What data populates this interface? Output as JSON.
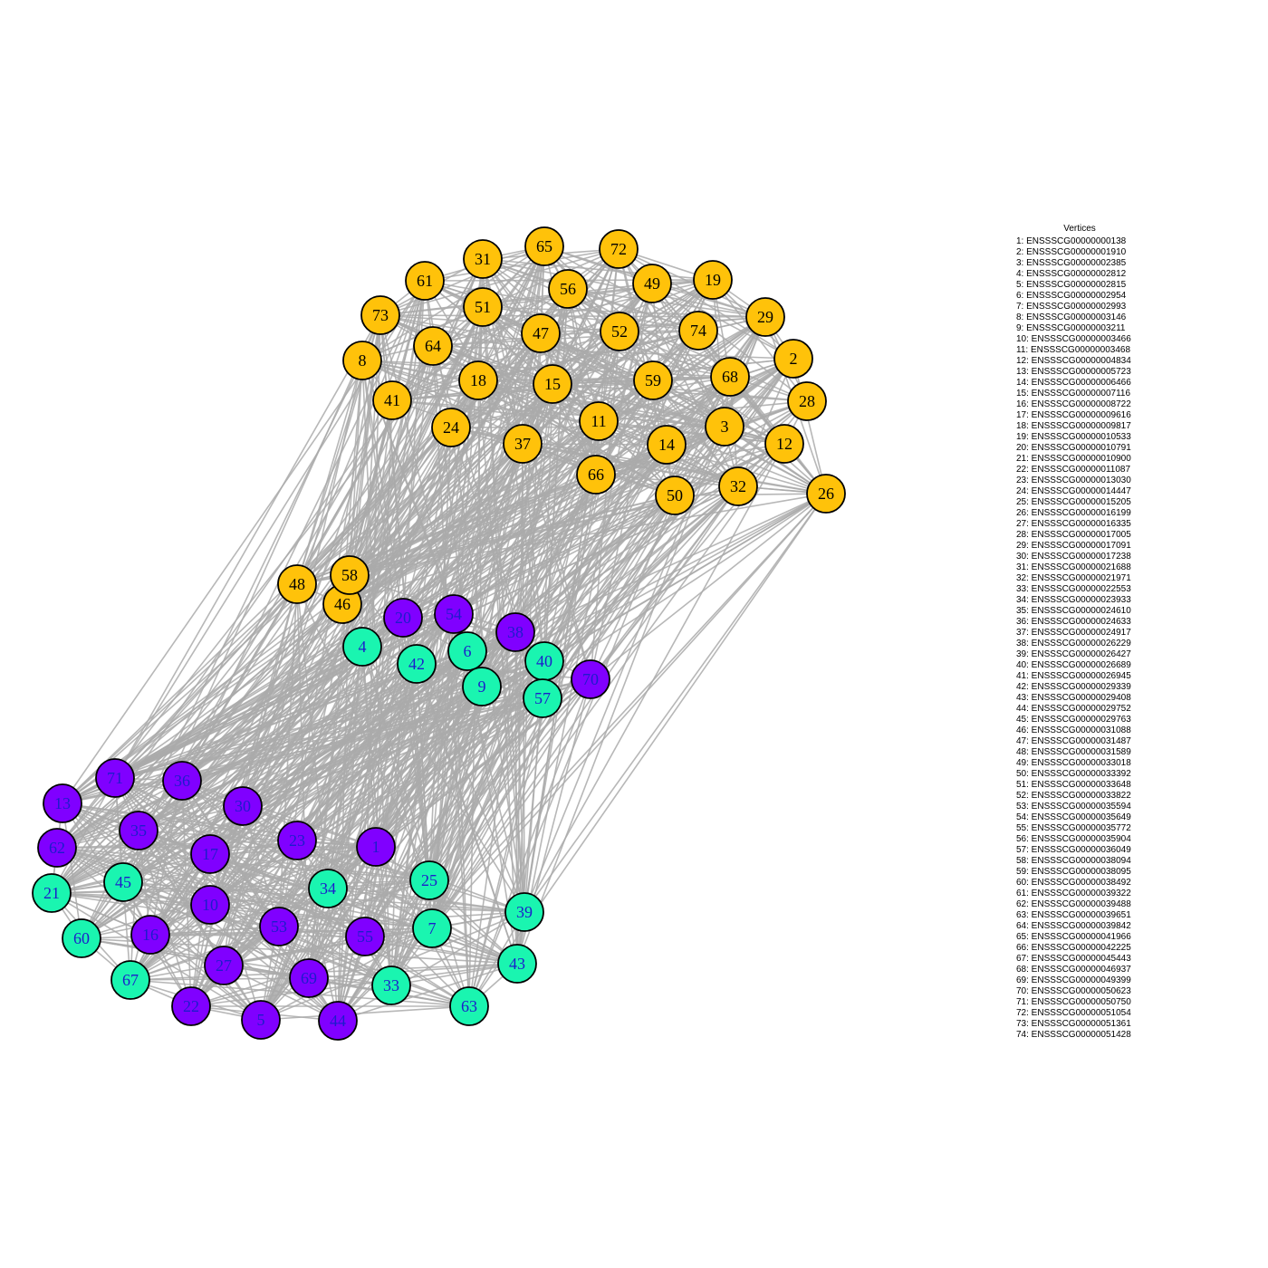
{
  "legend": {
    "title": "Vertices",
    "entries": [
      "1: ENSSSCG00000000138",
      "2: ENSSSCG00000001910",
      "3: ENSSSCG00000002385",
      "4: ENSSSCG00000002812",
      "5: ENSSSCG00000002815",
      "6: ENSSSCG00000002954",
      "7: ENSSSCG00000002993",
      "8: ENSSSCG00000003146",
      "9: ENSSSCG00000003211",
      "10: ENSSSCG00000003466",
      "11: ENSSSCG00000003468",
      "12: ENSSSCG00000004834",
      "13: ENSSSCG00000005723",
      "14: ENSSSCG00000006466",
      "15: ENSSSCG00000007116",
      "16: ENSSSCG00000008722",
      "17: ENSSSCG00000009616",
      "18: ENSSSCG00000009817",
      "19: ENSSSCG00000010533",
      "20: ENSSSCG00000010791",
      "21: ENSSSCG00000010900",
      "22: ENSSSCG00000011087",
      "23: ENSSSCG00000013030",
      "24: ENSSSCG00000014447",
      "25: ENSSSCG00000015205",
      "26: ENSSSCG00000016199",
      "27: ENSSSCG00000016335",
      "28: ENSSSCG00000017005",
      "29: ENSSSCG00000017091",
      "30: ENSSSCG00000017238",
      "31: ENSSSCG00000021688",
      "32: ENSSSCG00000021971",
      "33: ENSSSCG00000022553",
      "34: ENSSSCG00000023933",
      "35: ENSSSCG00000024610",
      "36: ENSSSCG00000024633",
      "37: ENSSSCG00000024917",
      "38: ENSSSCG00000026229",
      "39: ENSSSCG00000026427",
      "40: ENSSSCG00000026689",
      "41: ENSSSCG00000026945",
      "42: ENSSSCG00000029339",
      "43: ENSSSCG00000029408",
      "44: ENSSSCG00000029752",
      "45: ENSSSCG00000029763",
      "46: ENSSSCG00000031088",
      "47: ENSSSCG00000031487",
      "48: ENSSSCG00000031589",
      "49: ENSSSCG00000033018",
      "50: ENSSSCG00000033392",
      "51: ENSSSCG00000033648",
      "52: ENSSSCG00000033822",
      "53: ENSSSCG00000035594",
      "54: ENSSSCG00000035649",
      "55: ENSSSCG00000035772",
      "56: ENSSSCG00000035904",
      "57: ENSSSCG00000036049",
      "58: ENSSSCG00000038094",
      "59: ENSSSCG00000038095",
      "60: ENSSSCG00000038492",
      "61: ENSSSCG00000039322",
      "62: ENSSSCG00000039488",
      "63: ENSSSCG00000039651",
      "64: ENSSSCG00000039842",
      "65: ENSSSCG00000041966",
      "66: ENSSSCG00000042225",
      "67: ENSSSCG00000045443",
      "68: ENSSSCG00000046937",
      "69: ENSSSCG00000049399",
      "70: ENSSSCG00000050623",
      "71: ENSSSCG00000050750",
      "72: ENSSSCG00000051054",
      "73: ENSSSCG00000051361",
      "74: ENSSSCG00000051428"
    ]
  },
  "colors": {
    "yellow": "#FFC20A",
    "purple": "#8000FF",
    "teal": "#1AF5B0",
    "edge": "#AAAAAA",
    "node_label_on_yellow": "#000000",
    "node_label_on_purple": "#1C1CCC",
    "node_label_on_teal": "#1C1CCC"
  },
  "nodes": [
    {
      "id": "1",
      "group": "purple"
    },
    {
      "id": "2",
      "group": "yellow"
    },
    {
      "id": "3",
      "group": "yellow"
    },
    {
      "id": "4",
      "group": "teal"
    },
    {
      "id": "5",
      "group": "purple"
    },
    {
      "id": "6",
      "group": "teal"
    },
    {
      "id": "7",
      "group": "teal"
    },
    {
      "id": "8",
      "group": "yellow"
    },
    {
      "id": "9",
      "group": "teal"
    },
    {
      "id": "10",
      "group": "purple"
    },
    {
      "id": "11",
      "group": "yellow"
    },
    {
      "id": "12",
      "group": "yellow"
    },
    {
      "id": "13",
      "group": "purple"
    },
    {
      "id": "14",
      "group": "yellow"
    },
    {
      "id": "15",
      "group": "yellow"
    },
    {
      "id": "16",
      "group": "purple"
    },
    {
      "id": "17",
      "group": "purple"
    },
    {
      "id": "18",
      "group": "yellow"
    },
    {
      "id": "19",
      "group": "yellow"
    },
    {
      "id": "20",
      "group": "purple"
    },
    {
      "id": "21",
      "group": "teal"
    },
    {
      "id": "22",
      "group": "purple"
    },
    {
      "id": "23",
      "group": "purple"
    },
    {
      "id": "24",
      "group": "yellow"
    },
    {
      "id": "25",
      "group": "teal"
    },
    {
      "id": "26",
      "group": "yellow"
    },
    {
      "id": "27",
      "group": "purple"
    },
    {
      "id": "28",
      "group": "yellow"
    },
    {
      "id": "29",
      "group": "yellow"
    },
    {
      "id": "30",
      "group": "purple"
    },
    {
      "id": "31",
      "group": "yellow"
    },
    {
      "id": "32",
      "group": "yellow"
    },
    {
      "id": "33",
      "group": "teal"
    },
    {
      "id": "34",
      "group": "teal"
    },
    {
      "id": "35",
      "group": "purple"
    },
    {
      "id": "36",
      "group": "purple"
    },
    {
      "id": "37",
      "group": "yellow"
    },
    {
      "id": "38",
      "group": "purple"
    },
    {
      "id": "39",
      "group": "teal"
    },
    {
      "id": "40",
      "group": "teal"
    },
    {
      "id": "41",
      "group": "yellow"
    },
    {
      "id": "42",
      "group": "teal"
    },
    {
      "id": "43",
      "group": "teal"
    },
    {
      "id": "44",
      "group": "purple"
    },
    {
      "id": "45",
      "group": "teal"
    },
    {
      "id": "46",
      "group": "yellow"
    },
    {
      "id": "47",
      "group": "yellow"
    },
    {
      "id": "48",
      "group": "yellow"
    },
    {
      "id": "49",
      "group": "yellow"
    },
    {
      "id": "50",
      "group": "yellow"
    },
    {
      "id": "51",
      "group": "yellow"
    },
    {
      "id": "52",
      "group": "yellow"
    },
    {
      "id": "53",
      "group": "purple"
    },
    {
      "id": "54",
      "group": "purple"
    },
    {
      "id": "55",
      "group": "purple"
    },
    {
      "id": "56",
      "group": "yellow"
    },
    {
      "id": "57",
      "group": "teal"
    },
    {
      "id": "58",
      "group": "yellow"
    },
    {
      "id": "59",
      "group": "yellow"
    },
    {
      "id": "60",
      "group": "teal"
    },
    {
      "id": "61",
      "group": "yellow"
    },
    {
      "id": "62",
      "group": "purple"
    },
    {
      "id": "63",
      "group": "teal"
    },
    {
      "id": "64",
      "group": "yellow"
    },
    {
      "id": "65",
      "group": "yellow"
    },
    {
      "id": "66",
      "group": "yellow"
    },
    {
      "id": "67",
      "group": "teal"
    },
    {
      "id": "68",
      "group": "yellow"
    },
    {
      "id": "69",
      "group": "purple"
    },
    {
      "id": "70",
      "group": "purple"
    },
    {
      "id": "71",
      "group": "purple"
    },
    {
      "id": "72",
      "group": "yellow"
    },
    {
      "id": "73",
      "group": "yellow"
    },
    {
      "id": "74",
      "group": "yellow"
    }
  ]
}
